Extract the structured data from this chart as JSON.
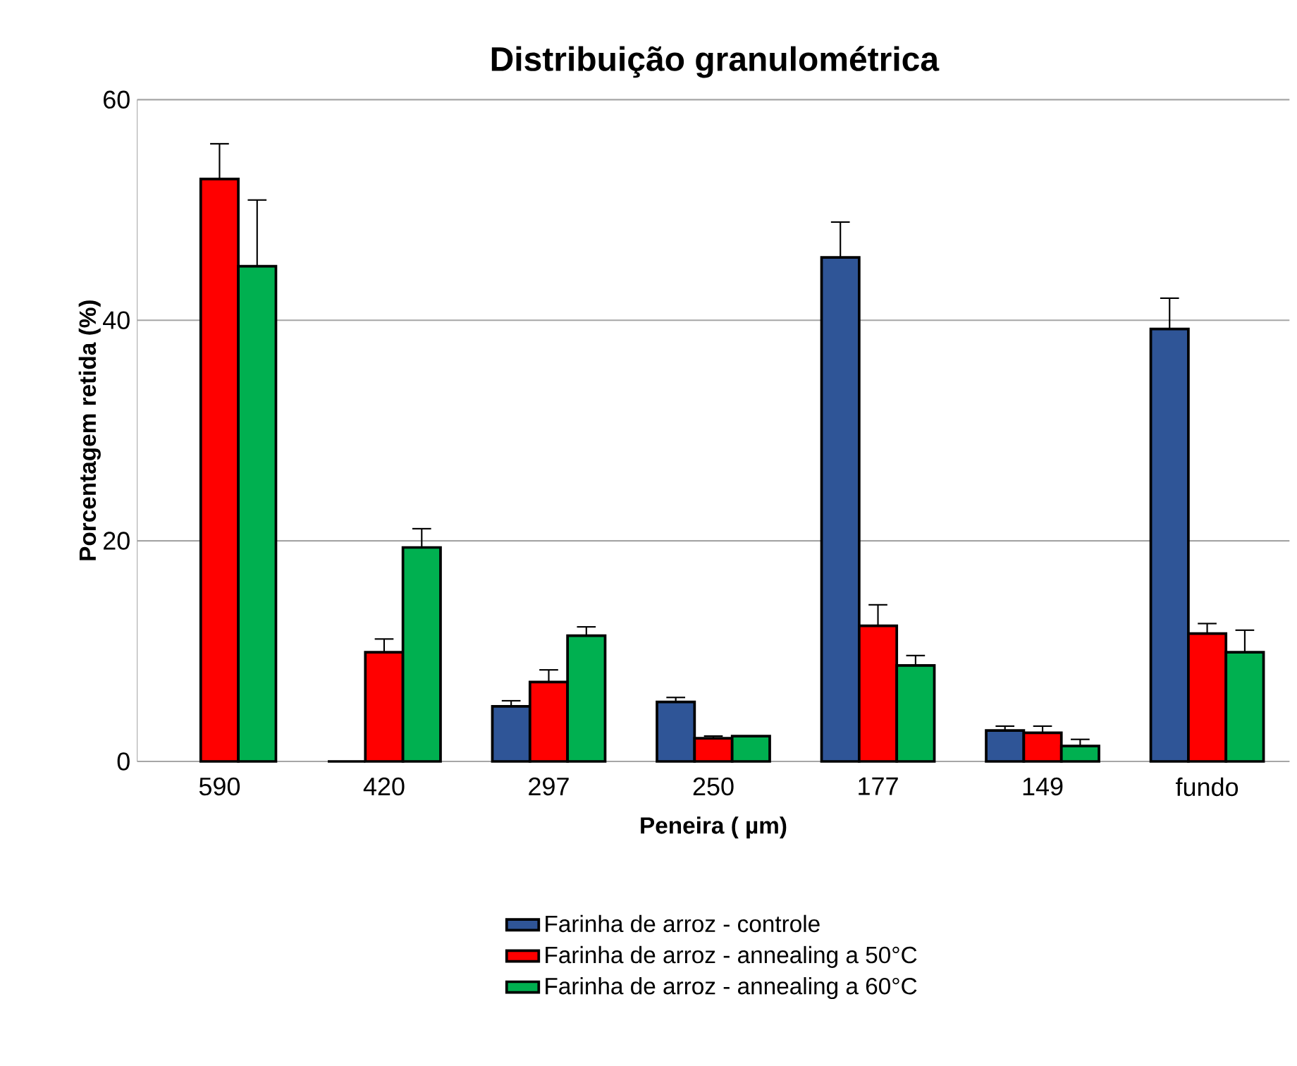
{
  "chart_data": {
    "type": "bar",
    "title": "Distribuição granulométrica",
    "xlabel": "Peneira ( µm)",
    "ylabel": "Porcentagem retida (%)",
    "categories": [
      "590",
      "420",
      "297",
      "250",
      "177",
      "149",
      "fundo"
    ],
    "series": [
      {
        "name": "Farinha de arroz - controle",
        "color": "#2f5597",
        "values": [
          null,
          0,
          5.0,
          5.4,
          45.7,
          2.8,
          39.2
        ],
        "errors": [
          null,
          null,
          [
            5.0,
            5.5
          ],
          [
            5.4,
            5.8
          ],
          [
            45.7,
            48.9
          ],
          [
            2.8,
            3.2
          ],
          [
            39.2,
            42.0
          ]
        ]
      },
      {
        "name": "Farinha de arroz - annealing a 50°C",
        "color": "#ff0000",
        "values": [
          52.8,
          9.9,
          7.2,
          2.1,
          12.3,
          2.6,
          11.6
        ],
        "errors": [
          [
            52.8,
            56.0
          ],
          [
            9.9,
            11.1
          ],
          [
            7.2,
            8.3
          ],
          [
            2.1,
            2.3
          ],
          [
            12.3,
            14.2
          ],
          [
            2.6,
            3.2
          ],
          [
            11.6,
            12.5
          ]
        ]
      },
      {
        "name": "Farinha de arroz - annealing a 60°C",
        "color": "#00b050",
        "values": [
          44.9,
          19.4,
          11.4,
          2.3,
          8.7,
          1.4,
          9.9
        ],
        "errors": [
          [
            44.9,
            50.9
          ],
          [
            19.4,
            21.1
          ],
          [
            11.4,
            12.2
          ],
          null,
          [
            8.7,
            9.6
          ],
          [
            1.4,
            2.0
          ],
          [
            9.9,
            11.9
          ]
        ]
      }
    ],
    "ylim": [
      0,
      60
    ],
    "yticks": [
      0,
      20,
      40,
      60
    ],
    "grid": "y",
    "legend": "bottom"
  }
}
